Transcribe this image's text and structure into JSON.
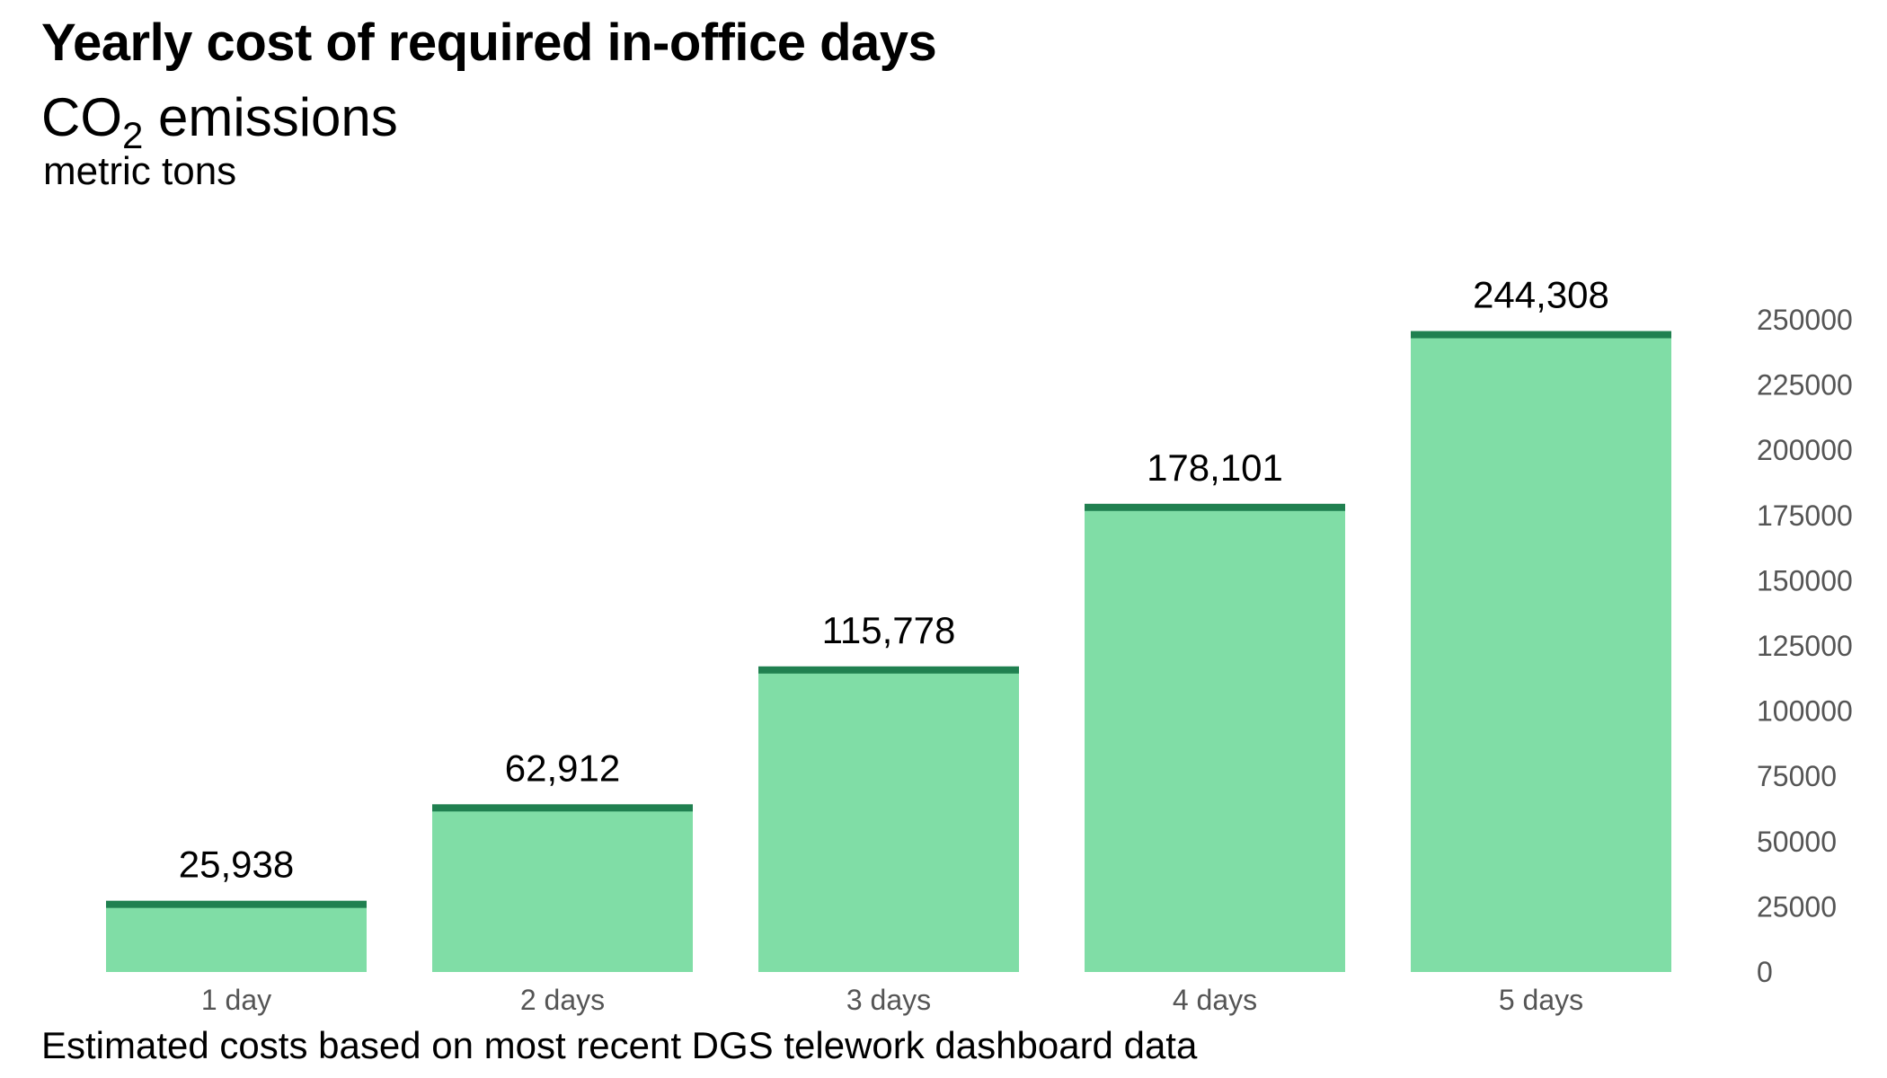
{
  "title": "Yearly cost of required in-office days",
  "subtitle": {
    "main": "CO",
    "subscript": "2",
    "rest": " emissions"
  },
  "units": "metric tons",
  "footnote": "Estimated costs based on most recent DGS telework dashboard data",
  "colors": {
    "bar_fill": "#80dda6",
    "bar_cap": "#208050",
    "tick_text": "#555555"
  },
  "chart_data": {
    "type": "bar",
    "title": "Yearly cost of required in-office days",
    "subtitle": "CO2 emissions",
    "ylabel": "metric tons",
    "xlabel": "",
    "categories": [
      "1 day",
      "2 days",
      "3 days",
      "4 days",
      "5 days"
    ],
    "values": [
      25938,
      62912,
      115778,
      178101,
      244308
    ],
    "value_labels": [
      "25,938",
      "62,912",
      "115,778",
      "178,101",
      "244,308"
    ],
    "ylim": [
      0,
      250000
    ],
    "yticks": [
      0,
      25000,
      50000,
      75000,
      100000,
      125000,
      150000,
      175000,
      200000,
      225000,
      250000
    ],
    "ytick_labels": [
      "0",
      "25000",
      "50000",
      "75000",
      "100000",
      "125000",
      "150000",
      "175000",
      "200000",
      "225000",
      "250000"
    ],
    "y_axis_position": "right",
    "grid": false,
    "legend": "none"
  }
}
